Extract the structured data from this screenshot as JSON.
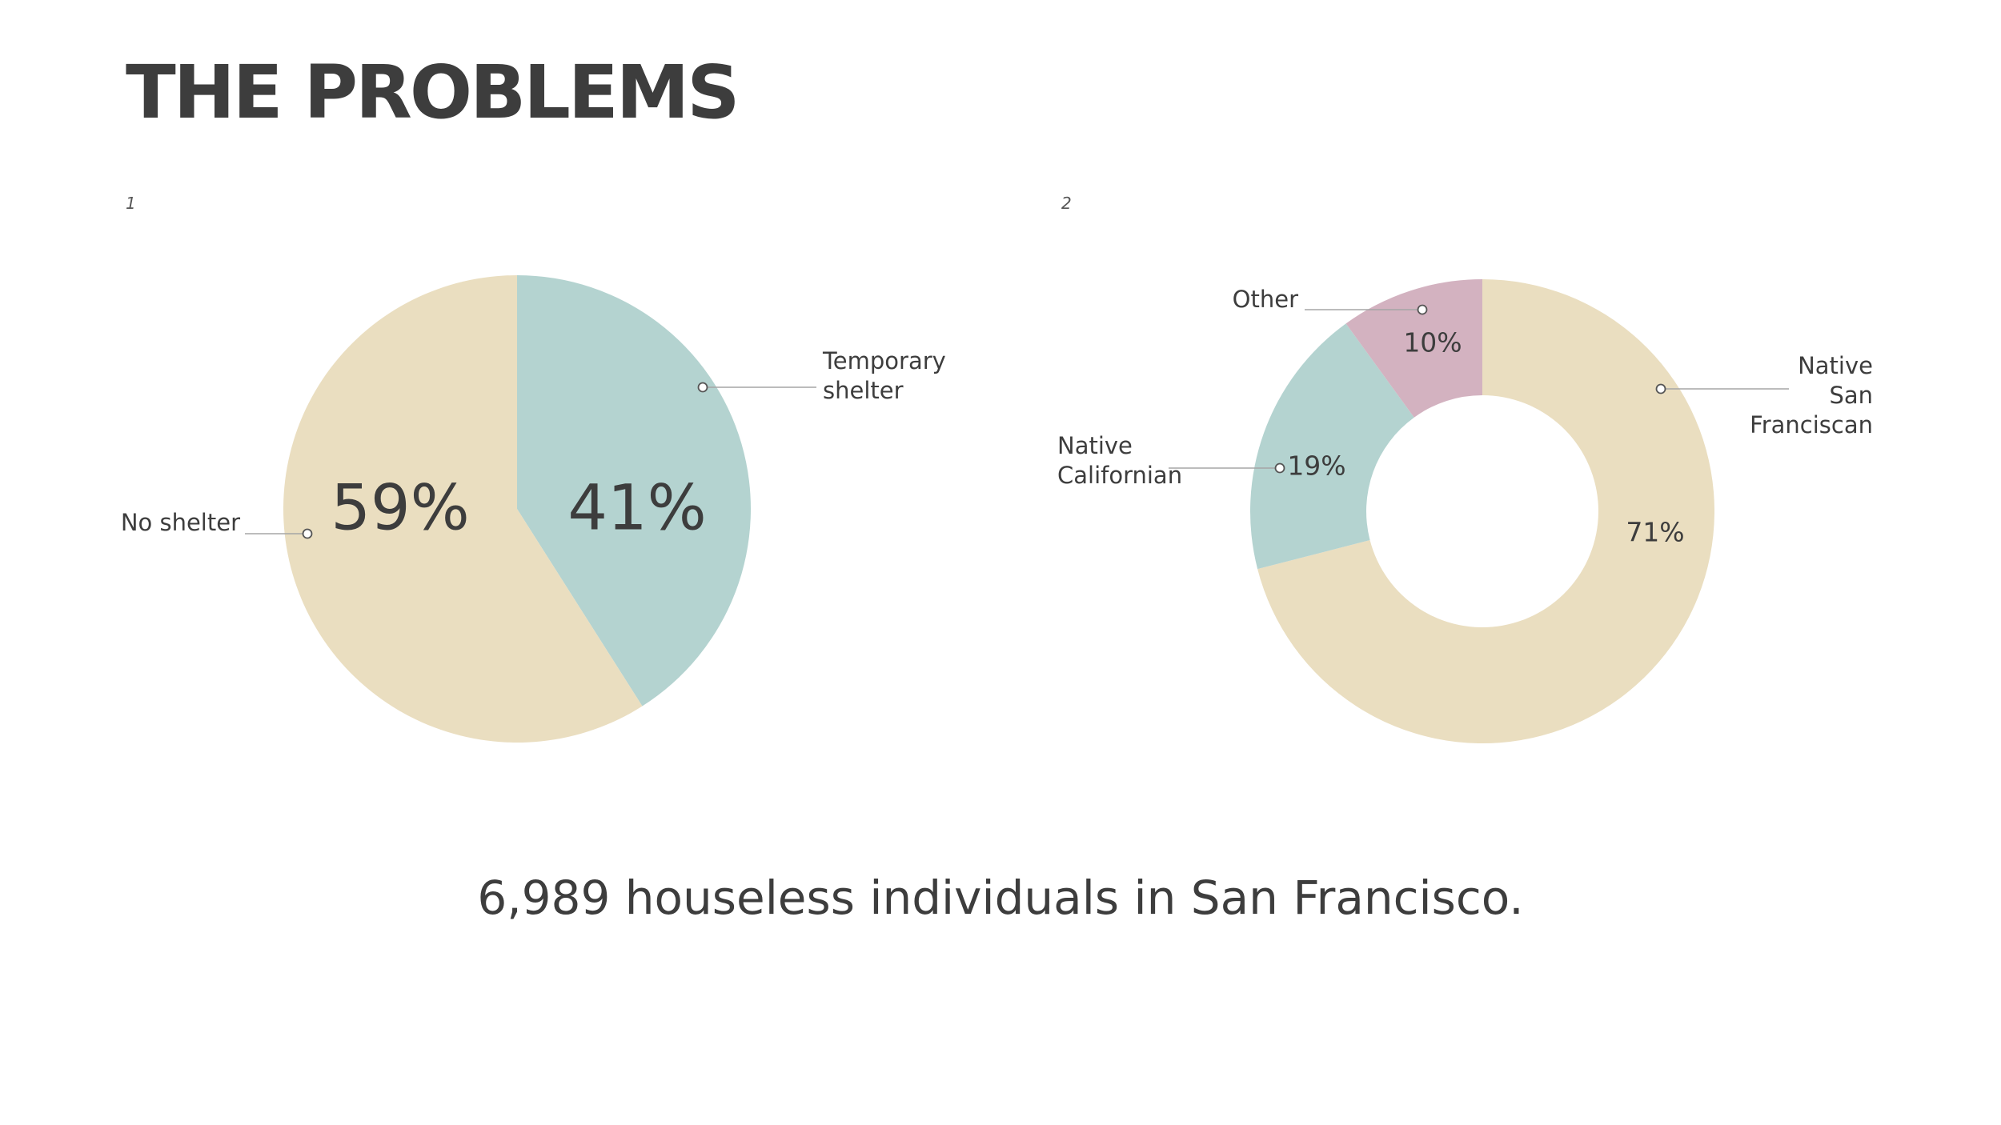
{
  "page": {
    "title": "THE PROBLEMS",
    "caption": "6,989 houseless individuals in San Francisco."
  },
  "colors": {
    "beige": "#eadec0",
    "teal": "#b4d3d0",
    "mauve": "#d3b2c0",
    "text": "#3d3d3d",
    "leader": "#a5a5a5"
  },
  "chart_data": [
    {
      "type": "pie",
      "panel_label": "1",
      "slices": [
        {
          "label": "Temporary shelter",
          "value": 41,
          "value_label": "41%",
          "color": "#b4d3d0"
        },
        {
          "label": "No shelter",
          "value": 59,
          "value_label": "59%",
          "color": "#eadec0"
        }
      ]
    },
    {
      "type": "pie",
      "donut": true,
      "panel_label": "2",
      "slices": [
        {
          "label": "Native San Franciscan",
          "value": 71,
          "value_label": "71%",
          "color": "#eadec0"
        },
        {
          "label": "Native Californian",
          "value": 19,
          "value_label": "19%",
          "color": "#b4d3d0"
        },
        {
          "label": "Other",
          "value": 10,
          "value_label": "10%",
          "color": "#d3b2c0"
        }
      ]
    }
  ]
}
